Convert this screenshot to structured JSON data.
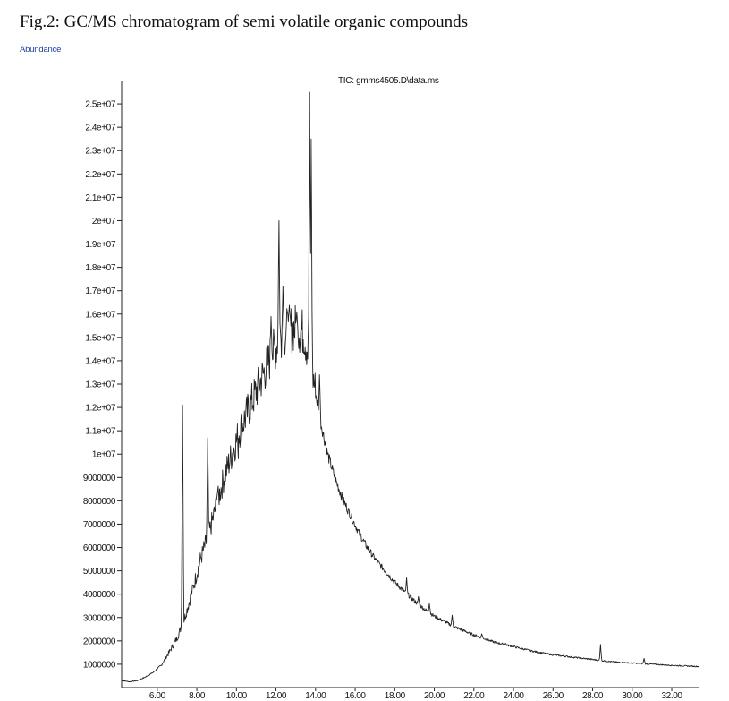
{
  "page": {
    "caption": "Fig.2: GC/MS chromatogram of semi volatile organic compounds"
  },
  "chart_data": {
    "type": "line",
    "title": "TIC: gmms4505.D\\data.ms",
    "ylabel": "Abundance",
    "xlabel": "",
    "xlim": [
      4.2,
      33.4
    ],
    "ylim": [
      0,
      26000000
    ],
    "line_color": "#222222",
    "x_ticks": [
      "6.00",
      "8.00",
      "10.00",
      "12.00",
      "14.00",
      "16.00",
      "18.00",
      "20.00",
      "22.00",
      "24.00",
      "26.00",
      "28.00",
      "30.00",
      "32.00"
    ],
    "x_tick_values": [
      6,
      8,
      10,
      12,
      14,
      16,
      18,
      20,
      22,
      24,
      26,
      28,
      30,
      32
    ],
    "y_ticks": [
      "1000000",
      "2000000",
      "3000000",
      "4000000",
      "5000000",
      "6000000",
      "7000000",
      "8000000",
      "9000000",
      "1e+07",
      "1.1e+07",
      "1.2e+07",
      "1.3e+07",
      "1.4e+07",
      "1.5e+07",
      "1.6e+07",
      "1.7e+07",
      "1.8e+07",
      "1.9e+07",
      "2e+07",
      "2.1e+07",
      "2.2e+07",
      "2.3e+07",
      "2.4e+07",
      "2.5e+07"
    ],
    "y_tick_values": [
      1000000,
      2000000,
      3000000,
      4000000,
      5000000,
      6000000,
      7000000,
      8000000,
      9000000,
      10000000,
      11000000,
      12000000,
      13000000,
      14000000,
      15000000,
      16000000,
      17000000,
      18000000,
      19000000,
      20000000,
      21000000,
      22000000,
      23000000,
      24000000,
      25000000
    ],
    "series": [
      {
        "x": [
          4.2,
          4.6,
          5.0,
          5.4,
          5.8,
          6.2,
          6.6,
          7.0,
          7.4,
          7.8,
          8.2,
          8.6,
          9.0,
          9.4,
          9.8,
          10.2,
          10.6,
          11.0,
          11.4,
          11.8,
          12.2,
          12.6,
          13.0,
          13.4,
          13.8,
          14.2,
          14.6,
          15.0,
          15.4,
          15.8,
          16.2,
          16.6,
          17.0,
          17.5,
          18.0,
          18.5,
          19.0,
          19.5,
          20.0,
          21.0,
          22.0,
          23.0,
          24.0,
          25.0,
          26.0,
          27.0,
          28.0,
          29.0,
          30.0,
          31.0,
          32.0,
          33.4
        ],
        "y": [
          300000,
          250000,
          300000,
          450000,
          650000,
          950000,
          1500000,
          2100000,
          3000000,
          4200000,
          5500000,
          6500000,
          7800000,
          9000000,
          10000000,
          11000000,
          11800000,
          12600000,
          13400000,
          14200000,
          14800000,
          15200000,
          15300000,
          15100000,
          13600000,
          11600000,
          10000000,
          8900000,
          8000000,
          7300000,
          6600000,
          6000000,
          5500000,
          5000000,
          4500000,
          4100000,
          3700000,
          3350000,
          3050000,
          2600000,
          2250000,
          1950000,
          1750000,
          1550000,
          1400000,
          1300000,
          1200000,
          1100000,
          1050000,
          1000000,
          950000,
          900000
        ]
      }
    ],
    "peaks": [
      {
        "x": 7.28,
        "y": 12100000
      },
      {
        "x": 8.55,
        "y": 10700000
      },
      {
        "x": 9.05,
        "y": 8400000
      },
      {
        "x": 10.1,
        "y": 9800000
      },
      {
        "x": 11.75,
        "y": 15900000
      },
      {
        "x": 12.15,
        "y": 20000000
      },
      {
        "x": 12.35,
        "y": 17200000
      },
      {
        "x": 12.6,
        "y": 16000000
      },
      {
        "x": 13.05,
        "y": 16100000
      },
      {
        "x": 13.7,
        "y": 25500000
      },
      {
        "x": 13.78,
        "y": 23500000
      },
      {
        "x": 14.2,
        "y": 13400000
      },
      {
        "x": 18.6,
        "y": 4700000
      },
      {
        "x": 19.2,
        "y": 3900000
      },
      {
        "x": 19.75,
        "y": 3600000
      },
      {
        "x": 20.9,
        "y": 3100000
      },
      {
        "x": 22.4,
        "y": 2300000
      },
      {
        "x": 23.6,
        "y": 1900000
      },
      {
        "x": 25.5,
        "y": 1500000
      },
      {
        "x": 28.4,
        "y": 1850000
      },
      {
        "x": 30.6,
        "y": 1250000
      }
    ]
  }
}
